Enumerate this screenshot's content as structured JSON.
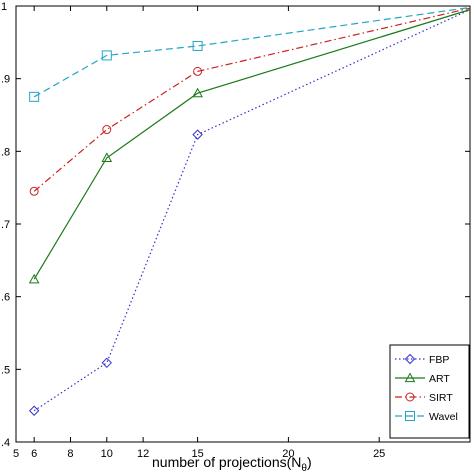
{
  "chart_data": {
    "type": "line",
    "xlabel": "number of projections(N",
    "xlabel_subscript": "θ",
    "xlabel_close": ")",
    "xlim": [
      5,
      30
    ],
    "ylim": [
      0.4,
      1.0
    ],
    "x_ticks": [
      5,
      6,
      8,
      10,
      12,
      15,
      20,
      25
    ],
    "y_ticks": [
      {
        "value": 0.4,
        "label": ".4"
      },
      {
        "value": 0.5,
        "label": ".5"
      },
      {
        "value": 0.6,
        "label": ".6"
      },
      {
        "value": 0.7,
        "label": ".7"
      },
      {
        "value": 0.8,
        "label": ".8"
      },
      {
        "value": 0.9,
        "label": ".9"
      },
      {
        "value": 1.0,
        "label": "1"
      }
    ],
    "grid": false,
    "legend_position": "bottom-right",
    "series": [
      {
        "name": "FBP",
        "color": "#3333cc",
        "dash": "dotted",
        "marker": "diamond",
        "x": [
          6,
          10,
          15,
          30
        ],
        "y": [
          0.443,
          0.509,
          0.823,
          0.995
        ]
      },
      {
        "name": "ART",
        "color": "#1a7a1a",
        "dash": "solid",
        "marker": "triangle",
        "x": [
          6,
          10,
          15,
          30
        ],
        "y": [
          0.624,
          0.791,
          0.88,
          0.995
        ]
      },
      {
        "name": "SIRT",
        "color": "#cc2222",
        "dash": "dashdot",
        "marker": "circle",
        "x": [
          6,
          10,
          15,
          30
        ],
        "y": [
          0.745,
          0.83,
          0.91,
          0.997
        ]
      },
      {
        "name": "Wavel",
        "color": "#22a6c4",
        "dash": "dashed",
        "marker": "square",
        "x": [
          6,
          10,
          15,
          30
        ],
        "y": [
          0.875,
          0.932,
          0.945,
          0.998
        ]
      }
    ]
  }
}
